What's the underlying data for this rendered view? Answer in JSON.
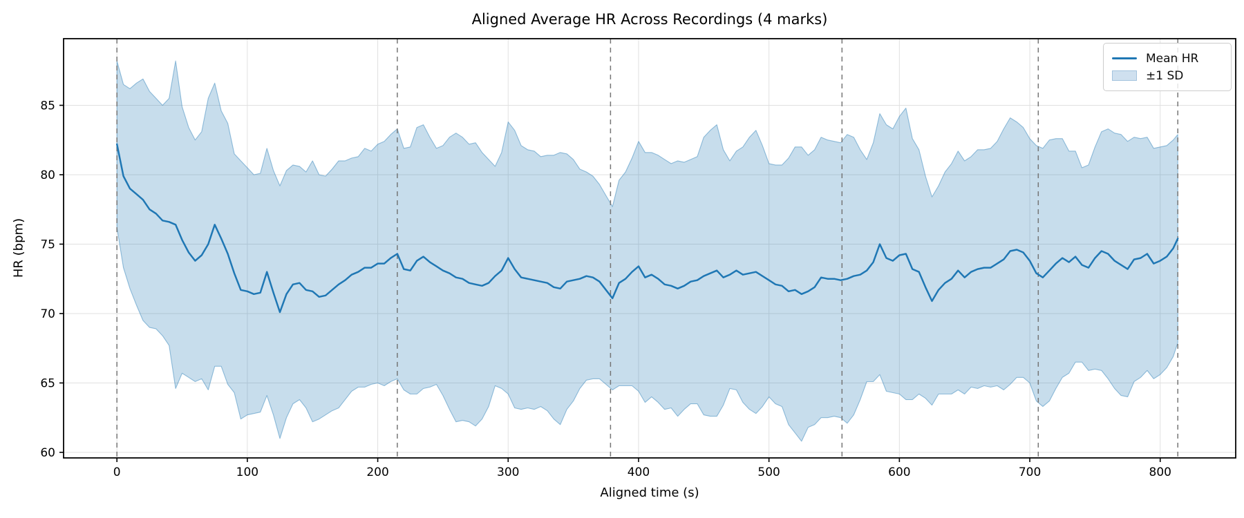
{
  "colors": {
    "mean_line": "#1f77b4",
    "band_fill": "#1f77b4",
    "band_fill_alpha": 0.25,
    "band_edge": "#1f77b4",
    "band_edge_alpha": 0.45,
    "grid": "#e0e0e0",
    "mark_line": "#757575",
    "spine": "#000000",
    "tick_text": "#000000",
    "legend_band_swatch_bg": "#cfe0ef",
    "legend_band_swatch_border": "#a3c3de"
  },
  "legend": {
    "items": [
      {
        "label": "Mean HR",
        "type": "line"
      },
      {
        "label": "±1 SD",
        "type": "band"
      }
    ]
  },
  "chart_data": {
    "type": "line",
    "title": "Aligned Average HR Across Recordings (4 marks)",
    "xlabel": "Aligned time (s)",
    "ylabel": "HR (bpm)",
    "xlim": [
      -40.9,
      857.9
    ],
    "ylim": [
      59.6,
      89.8
    ],
    "xticks": [
      0,
      100,
      200,
      300,
      400,
      500,
      600,
      700,
      800
    ],
    "yticks": [
      60,
      65,
      70,
      75,
      80,
      85
    ],
    "grid": true,
    "legend_position": "upper right",
    "band": "mean ± 1 SD",
    "mark_lines_s": [
      0,
      215,
      378.5,
      556,
      706.5,
      813.5
    ],
    "x": [
      0,
      5,
      10,
      15,
      20,
      25,
      30,
      35,
      40,
      45,
      50,
      55,
      60,
      65,
      70,
      75,
      80,
      85,
      90,
      95,
      100,
      105,
      110,
      115,
      120,
      125,
      130,
      135,
      140,
      145,
      150,
      155,
      160,
      165,
      170,
      175,
      180,
      185,
      190,
      195,
      200,
      205,
      210,
      215,
      220,
      225,
      230,
      235,
      240,
      245,
      250,
      255,
      260,
      265,
      270,
      275,
      280,
      285,
      290,
      295,
      300,
      305,
      310,
      315,
      320,
      325,
      330,
      335,
      340,
      345,
      350,
      355,
      360,
      365,
      370,
      375,
      380,
      385,
      390,
      395,
      400,
      405,
      410,
      415,
      420,
      425,
      430,
      435,
      440,
      445,
      450,
      455,
      460,
      465,
      470,
      475,
      480,
      485,
      490,
      495,
      500,
      505,
      510,
      515,
      520,
      525,
      530,
      535,
      540,
      545,
      550,
      555,
      560,
      565,
      570,
      575,
      580,
      585,
      590,
      595,
      600,
      605,
      610,
      615,
      620,
      625,
      630,
      635,
      640,
      645,
      650,
      655,
      660,
      665,
      670,
      675,
      680,
      685,
      690,
      695,
      700,
      705,
      710,
      715,
      720,
      725,
      730,
      735,
      740,
      745,
      750,
      755,
      760,
      765,
      770,
      775,
      780,
      785,
      790,
      795,
      800,
      805,
      810,
      813.5
    ],
    "mean": [
      82.2,
      79.9,
      79.0,
      78.6,
      78.2,
      77.5,
      77.2,
      76.7,
      76.6,
      76.4,
      75.3,
      74.4,
      73.8,
      74.2,
      75.0,
      76.4,
      75.4,
      74.3,
      72.9,
      71.7,
      71.6,
      71.4,
      71.5,
      73.0,
      71.5,
      70.1,
      71.4,
      72.1,
      72.2,
      71.7,
      71.6,
      71.2,
      71.3,
      71.7,
      72.1,
      72.4,
      72.8,
      73.0,
      73.3,
      73.3,
      73.6,
      73.6,
      74.0,
      74.3,
      73.2,
      73.1,
      73.8,
      74.1,
      73.7,
      73.4,
      73.1,
      72.9,
      72.6,
      72.5,
      72.2,
      72.1,
      72.0,
      72.2,
      72.7,
      73.1,
      74.0,
      73.2,
      72.6,
      72.5,
      72.4,
      72.3,
      72.2,
      71.9,
      71.8,
      72.3,
      72.4,
      72.5,
      72.7,
      72.6,
      72.3,
      71.7,
      71.1,
      72.2,
      72.5,
      73.0,
      73.4,
      72.6,
      72.8,
      72.5,
      72.1,
      72.0,
      71.8,
      72.0,
      72.3,
      72.4,
      72.7,
      72.9,
      73.1,
      72.6,
      72.8,
      73.1,
      72.8,
      72.9,
      73.0,
      72.7,
      72.4,
      72.1,
      72.0,
      71.6,
      71.7,
      71.4,
      71.6,
      71.9,
      72.6,
      72.5,
      72.5,
      72.4,
      72.5,
      72.7,
      72.8,
      73.1,
      73.7,
      75.0,
      74.0,
      73.8,
      74.2,
      74.3,
      73.2,
      73.0,
      71.9,
      70.9,
      71.7,
      72.2,
      72.5,
      73.1,
      72.6,
      73.0,
      73.2,
      73.3,
      73.3,
      73.6,
      73.9,
      74.5,
      74.6,
      74.4,
      73.8,
      72.9,
      72.6,
      73.1,
      73.6,
      74.0,
      73.7,
      74.1,
      73.5,
      73.3,
      74.0,
      74.5,
      74.3,
      73.8,
      73.5,
      73.2,
      73.9,
      74.0,
      74.3,
      73.6,
      73.8,
      74.1,
      74.7,
      75.4
    ],
    "sd": [
      6.0,
      6.6,
      7.2,
      8.0,
      8.7,
      8.5,
      8.3,
      8.3,
      8.9,
      11.8,
      9.6,
      9.0,
      8.7,
      8.9,
      10.5,
      10.2,
      9.2,
      9.4,
      8.6,
      9.3,
      8.9,
      8.6,
      8.6,
      8.9,
      8.8,
      9.1,
      8.9,
      8.6,
      8.4,
      8.5,
      9.4,
      8.8,
      8.6,
      8.7,
      8.9,
      8.6,
      8.4,
      8.3,
      8.6,
      8.4,
      8.6,
      8.8,
      8.9,
      9.0,
      8.7,
      8.9,
      9.6,
      9.5,
      9.0,
      8.5,
      9.0,
      9.8,
      10.4,
      10.2,
      10.0,
      10.2,
      9.6,
      8.9,
      7.9,
      8.5,
      9.8,
      10.0,
      9.5,
      9.3,
      9.3,
      9.0,
      9.2,
      9.5,
      9.8,
      9.2,
      8.7,
      7.9,
      7.5,
      7.3,
      7.0,
      6.8,
      6.6,
      7.4,
      7.7,
      8.2,
      9.0,
      9.0,
      8.8,
      8.9,
      9.0,
      8.8,
      9.2,
      8.9,
      8.8,
      8.9,
      10.0,
      10.3,
      10.5,
      9.2,
      8.2,
      8.6,
      9.2,
      9.8,
      10.2,
      9.4,
      8.4,
      8.6,
      8.7,
      9.6,
      10.3,
      10.6,
      9.8,
      9.9,
      10.1,
      10.0,
      9.9,
      9.9,
      10.4,
      10.0,
      9.0,
      8.0,
      8.6,
      9.4,
      9.6,
      9.5,
      10.0,
      10.5,
      9.4,
      8.8,
      8.0,
      7.5,
      7.5,
      8.0,
      8.3,
      8.6,
      8.4,
      8.3,
      8.6,
      8.5,
      8.6,
      8.8,
      9.4,
      9.6,
      9.2,
      9.0,
      8.8,
      9.2,
      9.3,
      9.4,
      9.0,
      8.6,
      8.0,
      7.6,
      7.0,
      7.4,
      8.0,
      8.6,
      9.0,
      9.2,
      9.4,
      9.2,
      8.8,
      8.6,
      8.4,
      8.3,
      8.2,
      8.0,
      7.8,
      7.5
    ]
  }
}
